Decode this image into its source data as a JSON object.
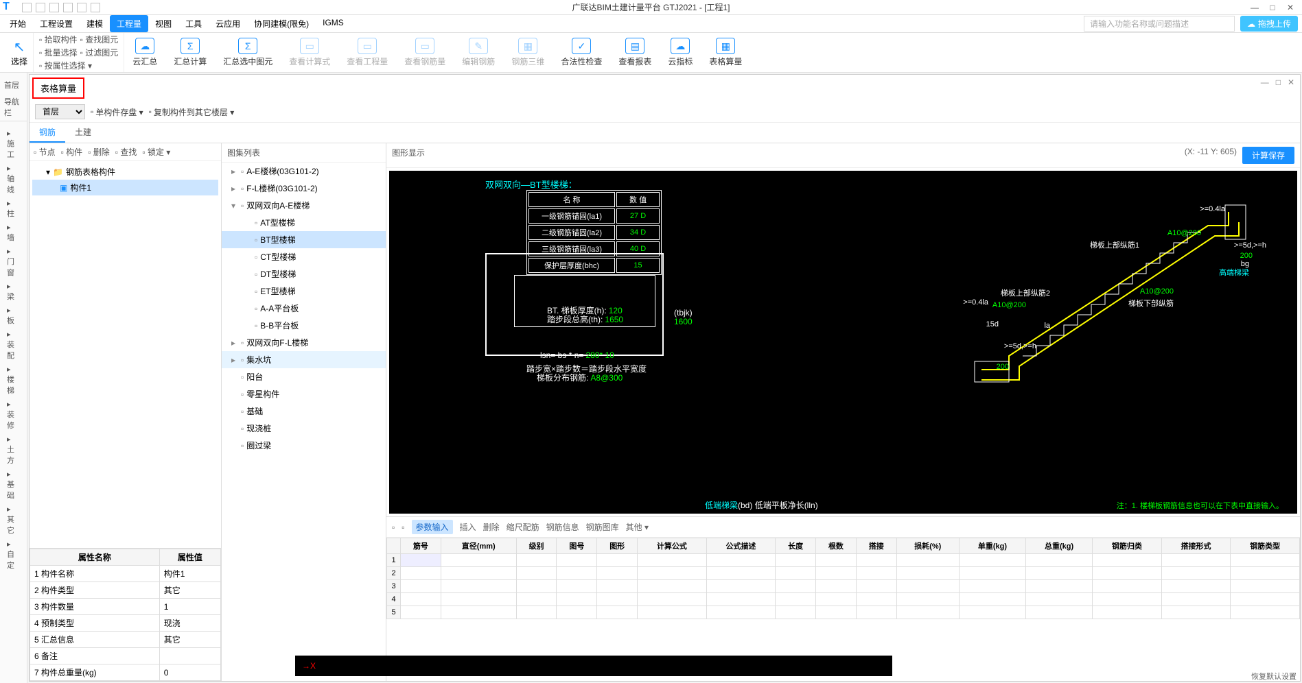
{
  "app": {
    "title": "广联达BIM土建计量平台 GTJ2021 - [工程1]",
    "search_placeholder": "请输入功能名称或问题描述",
    "upload_label": "拖拽上传"
  },
  "menubar": [
    "开始",
    "工程设置",
    "建模",
    "工程量",
    "视图",
    "工具",
    "云应用",
    "协同建模(限免)",
    "IGMS"
  ],
  "menubar_active": 3,
  "ribbon": {
    "select": "选择",
    "mini": [
      [
        "拾取构件",
        "查找图元"
      ],
      [
        "批量选择",
        "过滤图元"
      ],
      [
        "按属性选择 ▾",
        ""
      ]
    ],
    "buttons": [
      {
        "label": "云汇总",
        "icon": "☁"
      },
      {
        "label": "汇总计算",
        "icon": "Σ"
      },
      {
        "label": "汇总选中图元",
        "icon": "Σ"
      },
      {
        "label": "查看计算式",
        "icon": "▭",
        "disabled": true
      },
      {
        "label": "查看工程量",
        "icon": "▭",
        "disabled": true
      },
      {
        "label": "查看钢筋量",
        "icon": "▭",
        "disabled": true
      },
      {
        "label": "编辑钢筋",
        "icon": "✎",
        "disabled": true
      },
      {
        "label": "钢筋三维",
        "icon": "▦",
        "disabled": true
      },
      {
        "label": "合法性检查",
        "icon": "✓"
      },
      {
        "label": "查看报表",
        "icon": "▤"
      },
      {
        "label": "云指标",
        "icon": "☁"
      },
      {
        "label": "表格算量",
        "icon": "▦"
      }
    ]
  },
  "left_nav": {
    "header": "首层",
    "nav_label": "导航栏",
    "items": [
      "施工",
      "轴线",
      "柱",
      "墙",
      "门窗",
      "梁",
      "板",
      "装配",
      "楼梯",
      "装修",
      "土方",
      "基础",
      "其它",
      "自定"
    ]
  },
  "panel": {
    "title": "表格算量",
    "floor_select": "首层",
    "toolbar": [
      "单构件存盘 ▾",
      "复制构件到其它楼层 ▾"
    ],
    "tabs": [
      "钢筋",
      "土建"
    ],
    "active_tab": 0
  },
  "tree_toolbar": [
    "节点",
    "构件",
    "删除",
    "查找",
    "锁定 ▾"
  ],
  "tree": {
    "root": "钢筋表格构件",
    "child": "构件1"
  },
  "props": {
    "headers": [
      "属性名称",
      "属性值"
    ],
    "rows": [
      [
        "1",
        "构件名称",
        "构件1"
      ],
      [
        "2",
        "构件类型",
        "其它"
      ],
      [
        "3",
        "构件数量",
        "1"
      ],
      [
        "4",
        "预制类型",
        "现浇"
      ],
      [
        "5",
        "汇总信息",
        "其它"
      ],
      [
        "6",
        "备注",
        ""
      ],
      [
        "7",
        "构件总重量(kg)",
        "0"
      ]
    ]
  },
  "middle": {
    "header": "图集列表",
    "items": [
      {
        "label": "A-E楼梯(03G101-2)",
        "level": 1,
        "exp": "▸"
      },
      {
        "label": "F-L楼梯(03G101-2)",
        "level": 1,
        "exp": "▸"
      },
      {
        "label": "双网双向A-E楼梯",
        "level": 1,
        "exp": "▾"
      },
      {
        "label": "AT型楼梯",
        "level": 2
      },
      {
        "label": "BT型楼梯",
        "level": 2,
        "selected": true
      },
      {
        "label": "CT型楼梯",
        "level": 2
      },
      {
        "label": "DT型楼梯",
        "level": 2
      },
      {
        "label": "ET型楼梯",
        "level": 2
      },
      {
        "label": "A-A平台板",
        "level": 2
      },
      {
        "label": "B-B平台板",
        "level": 2
      },
      {
        "label": "双网双向F-L楼梯",
        "level": 1,
        "exp": "▸"
      },
      {
        "label": "集水坑",
        "level": 1,
        "exp": "▸",
        "hovered": true
      },
      {
        "label": "阳台",
        "level": 1
      },
      {
        "label": "零星构件",
        "level": 1
      },
      {
        "label": "基础",
        "level": 1
      },
      {
        "label": "现浇桩",
        "level": 1
      },
      {
        "label": "圈过梁",
        "level": 1
      }
    ]
  },
  "drawing": {
    "header": "图形显示",
    "coords": "(X: -11 Y: 605)",
    "calc_btn": "计算保存",
    "title": "双网双向—BT型楼梯：",
    "param_headers": [
      "名 称",
      "数 值"
    ],
    "params": [
      [
        "一级钢筋锚固(la1)",
        "27 D"
      ],
      [
        "二级钢筋锚固(la2)",
        "34 D"
      ],
      [
        "三级钢筋锚固(la3)",
        "40 D"
      ],
      [
        "保护层厚度(bhc)",
        "15"
      ]
    ],
    "section_labels": {
      "bt": "BT. 梯板厚度(h):",
      "bt_val": "120",
      "th": "踏步段总高(th):",
      "th_val": "1650",
      "tbjk": "(tbjk)",
      "tbjk_val": "1600",
      "lsn": "lsn= bs * n=",
      "lsn_val": "280* 10",
      "note1": "踏步宽×踏步数＝踏步段水平宽度",
      "note2": "梯板分布钢筋:",
      "note2_val": "A8@300"
    },
    "stair_labels": {
      "top_rebar": "梯板上部纵筋1",
      "top_rebar2": "梯板上部纵筋2",
      "bot_rebar": "梯板下部纵筋",
      "a10_200_1": "A10@200",
      "a10_200_2": "A10@200",
      "a10_200_3": "A10@200",
      "high_beam": "高端梯梁",
      "low_beam": "低端梯梁",
      "bd": "(bd) 低端平板净长(lln)",
      "dims": [
        ">=0.4la",
        ">=5d,>=h",
        "200",
        "bg",
        "15d",
        ">=5d,>=h",
        "la",
        "200"
      ]
    },
    "note": "注：1. 楼梯板钢筋信息也可以在下表中直接输入。"
  },
  "grid": {
    "toolbar": [
      "参数输入",
      "插入",
      "删除",
      "缩尺配筋",
      "钢筋信息",
      "钢筋图库",
      "其他 ▾"
    ],
    "toolbar_active": 0,
    "columns": [
      "筋号",
      "直径(mm)",
      "级别",
      "图号",
      "图形",
      "计算公式",
      "公式描述",
      "长度",
      "根数",
      "搭接",
      "损耗(%)",
      "单重(kg)",
      "总重(kg)",
      "钢筋归类",
      "搭接形式",
      "钢筋类型"
    ],
    "rowcount": 5
  },
  "statusbar": "恢复默认设置"
}
